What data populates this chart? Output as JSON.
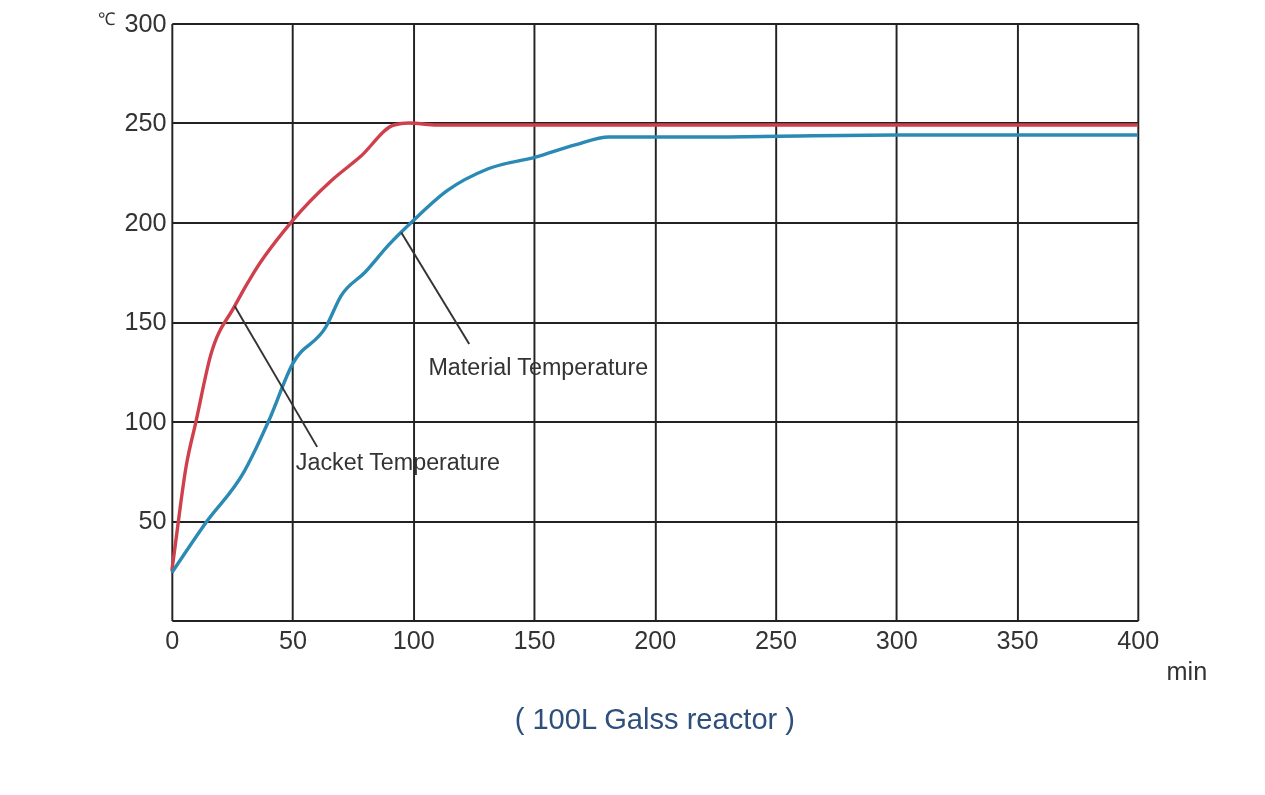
{
  "chart_data": {
    "type": "line",
    "title": "( 100L Galss reactor )",
    "xlabel": "min",
    "ylabel": "℃",
    "x": [
      0,
      1,
      6,
      10,
      16,
      26,
      34,
      50,
      66,
      78,
      92,
      98,
      110,
      150,
      200,
      250,
      300,
      350,
      400
    ],
    "series": [
      {
        "color": "#d0404c",
        "values": [
          25,
          34,
          78,
          100,
          133,
          158,
          175,
          201,
          221,
          233,
          249,
          250,
          249,
          249,
          249,
          249,
          249,
          249,
          249
        ]
      },
      {
        "color": "#2a8ab4",
        "x": [
          0,
          14,
          30,
          40,
          50,
          64,
          70,
          80,
          90,
          100,
          114,
          131,
          151,
          167,
          181,
          219,
          300,
          400
        ],
        "values": [
          24,
          49,
          75,
          100,
          129,
          148,
          163,
          175,
          189,
          201,
          216,
          227,
          233,
          239,
          243,
          243,
          244,
          244
        ]
      }
    ],
    "annotations": [
      {
        "text": "Jacket Temperature",
        "x": 26,
        "y": 158
      },
      {
        "text": "Material Temperature",
        "x": 95,
        "y": 195
      }
    ],
    "xlim": [
      0,
      400
    ],
    "xticks": [
      0,
      50,
      100,
      150,
      200,
      250,
      300,
      350,
      400
    ],
    "ylim": [
      0,
      300
    ],
    "yticks": [
      {
        "value": 0,
        "label": null
      },
      50,
      100,
      150,
      200,
      250,
      300
    ],
    "grid": true,
    "marker": "none",
    "line_style": "solid"
  }
}
